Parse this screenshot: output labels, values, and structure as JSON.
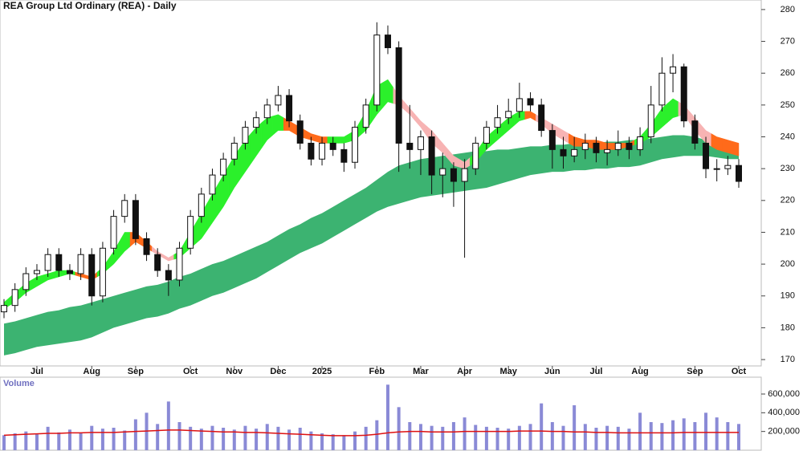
{
  "chart_data": {
    "type": "candlestick",
    "title": "REA Group Ltd Ordinary (REA) - Daily",
    "categories": [
      null,
      null,
      null,
      "Jul",
      null,
      null,
      null,
      null,
      "Aug",
      null,
      null,
      null,
      "Sep",
      null,
      null,
      null,
      null,
      "Oct",
      null,
      null,
      null,
      "Nov",
      null,
      null,
      null,
      "Dec",
      null,
      null,
      null,
      "2025",
      null,
      null,
      null,
      null,
      "Feb",
      null,
      null,
      null,
      "Mar",
      null,
      null,
      null,
      "Apr",
      null,
      null,
      null,
      "May",
      null,
      null,
      null,
      "Jun",
      null,
      null,
      null,
      "Jul",
      null,
      null,
      null,
      "Aug",
      null,
      null,
      null,
      null,
      "Sep",
      null,
      null,
      null,
      "Oct"
    ],
    "candles": [
      [
        185,
        189,
        183,
        187
      ],
      [
        187,
        194,
        185,
        192
      ],
      [
        192,
        199,
        190,
        197
      ],
      [
        197,
        200,
        195,
        198
      ],
      [
        198,
        205,
        196,
        203
      ],
      [
        203,
        205,
        196,
        198
      ],
      [
        198,
        200,
        195,
        197
      ],
      [
        197,
        205,
        195,
        203
      ],
      [
        203,
        205,
        187,
        190
      ],
      [
        190,
        207,
        188,
        205
      ],
      [
        205,
        217,
        203,
        215
      ],
      [
        215,
        222,
        213,
        220
      ],
      [
        220,
        222,
        206,
        208
      ],
      [
        208,
        210,
        201,
        203
      ],
      [
        203,
        205,
        196,
        198
      ],
      [
        198,
        200,
        190,
        195
      ],
      [
        195,
        207,
        193,
        205
      ],
      [
        205,
        217,
        203,
        215
      ],
      [
        215,
        224,
        213,
        222
      ],
      [
        222,
        230,
        220,
        228
      ],
      [
        228,
        235,
        226,
        233
      ],
      [
        233,
        240,
        231,
        238
      ],
      [
        238,
        245,
        236,
        243
      ],
      [
        243,
        248,
        241,
        246
      ],
      [
        246,
        252,
        244,
        250
      ],
      [
        250,
        256,
        248,
        253
      ],
      [
        253,
        255,
        243,
        245
      ],
      [
        245,
        247,
        236,
        238
      ],
      [
        238,
        240,
        231,
        233
      ],
      [
        233,
        240,
        231,
        238
      ],
      [
        238,
        240,
        234,
        236
      ],
      [
        236,
        238,
        229,
        232
      ],
      [
        232,
        245,
        230,
        243
      ],
      [
        243,
        252,
        241,
        250
      ],
      [
        250,
        276,
        248,
        272
      ],
      [
        272,
        275,
        266,
        268
      ],
      [
        268,
        270,
        229,
        238
      ],
      [
        238,
        250,
        230,
        236
      ],
      [
        236,
        242,
        228,
        240
      ],
      [
        240,
        242,
        222,
        228
      ],
      [
        228,
        235,
        221,
        230
      ],
      [
        230,
        232,
        218,
        226
      ],
      [
        226,
        233,
        202,
        230
      ],
      [
        230,
        240,
        228,
        238
      ],
      [
        238,
        245,
        236,
        243
      ],
      [
        243,
        250,
        241,
        246
      ],
      [
        246,
        252,
        244,
        248
      ],
      [
        248,
        257,
        246,
        252
      ],
      [
        252,
        254,
        248,
        250
      ],
      [
        250,
        252,
        240,
        242
      ],
      [
        242,
        244,
        230,
        236
      ],
      [
        236,
        240,
        230,
        234
      ],
      [
        234,
        240,
        232,
        236
      ],
      [
        236,
        241,
        233,
        238
      ],
      [
        238,
        240,
        232,
        235
      ],
      [
        235,
        239,
        231,
        236
      ],
      [
        236,
        242,
        234,
        238
      ],
      [
        238,
        240,
        233,
        236
      ],
      [
        236,
        243,
        234,
        240
      ],
      [
        240,
        256,
        238,
        250
      ],
      [
        250,
        265,
        248,
        260
      ],
      [
        260,
        266,
        254,
        262
      ],
      [
        262,
        263,
        243,
        245
      ],
      [
        245,
        247,
        236,
        238
      ],
      [
        238,
        240,
        227,
        230
      ],
      [
        230,
        233,
        226,
        230
      ],
      [
        230,
        234,
        228,
        231
      ],
      [
        231,
        233,
        224,
        226
      ]
    ],
    "up_color": "#ffffff",
    "down_color": "#111111",
    "long_ribbon": {
      "color": "#3cb371",
      "upper": [
        181.3,
        182,
        183,
        184,
        185,
        185.5,
        186.5,
        187,
        188,
        189,
        190,
        191,
        192,
        193,
        193.5,
        194.5,
        196,
        197,
        198.5,
        200,
        201,
        202.5,
        204,
        205.5,
        207,
        209,
        211,
        212.5,
        214.5,
        216,
        218,
        220,
        222,
        224,
        226.5,
        229,
        231,
        232,
        233,
        233.5,
        234,
        234.5,
        235,
        235.5,
        235.5,
        236,
        236,
        236.5,
        237,
        237,
        237.5,
        237.5,
        238,
        238,
        238,
        238.5,
        238.5,
        239,
        239,
        239.5,
        240,
        240.5,
        240.5,
        240,
        239,
        238.5,
        238,
        237
      ],
      "lower": [
        171.3,
        172,
        173,
        174,
        174.5,
        175,
        175.5,
        176,
        177,
        178.5,
        180,
        181,
        182,
        183,
        183.5,
        184.5,
        186,
        187,
        188.5,
        190,
        191,
        192.5,
        194,
        195.5,
        197.5,
        199.5,
        201.5,
        203.5,
        205,
        206.5,
        208.5,
        210.5,
        212.5,
        214.5,
        216.5,
        218,
        219,
        220,
        221,
        221.5,
        222,
        222.5,
        223,
        223.5,
        224,
        225,
        226,
        227,
        228,
        228.5,
        229,
        229,
        229.5,
        229.5,
        230,
        230,
        230.5,
        230.5,
        231,
        232,
        233,
        233.5,
        234,
        234,
        234,
        233.5,
        233,
        233
      ]
    },
    "short_ribbon": {
      "upper": [
        188,
        191,
        194,
        196,
        197,
        198,
        198,
        197,
        196,
        199,
        204,
        210,
        210,
        207,
        204,
        202,
        204,
        210,
        216,
        222,
        228,
        234,
        239,
        243,
        246,
        247,
        245,
        243,
        241,
        240,
        240,
        240,
        242,
        248,
        256,
        258,
        253,
        249,
        245,
        242,
        238,
        234,
        232,
        235,
        240,
        243,
        246,
        248,
        248,
        246,
        244,
        242,
        240,
        239,
        239,
        238,
        238,
        238,
        240,
        244,
        249,
        252,
        250,
        246,
        242,
        240,
        239,
        238
      ],
      "lower": [
        186,
        188,
        191,
        193,
        195,
        196,
        197,
        196,
        195,
        197,
        200,
        204,
        207,
        205,
        203,
        201,
        202,
        205,
        208,
        213,
        218,
        224,
        229,
        234,
        239,
        242,
        242,
        240,
        239,
        238,
        238,
        238,
        239,
        242,
        247,
        251,
        250,
        247,
        243,
        238,
        235,
        231,
        230,
        232,
        236,
        239,
        242,
        245,
        246,
        244,
        241,
        239,
        237,
        237,
        236,
        236,
        236,
        237,
        238,
        240,
        243,
        246,
        247,
        242,
        238,
        236,
        235,
        234
      ],
      "colors": [
        "#2bf02b",
        "#2bf02b",
        "#2bf02b",
        "#2bf02b",
        "#2bf02b",
        "#2bf02b",
        "#2bf02b",
        "#ff6a1a",
        "#ff6a1a",
        "#2bf02b",
        "#2bf02b",
        "#2bf02b",
        "#ff6a1a",
        "#ff6a1a",
        "#f7b3b3",
        "#f7b3b3",
        "#2bf02b",
        "#2bf02b",
        "#2bf02b",
        "#2bf02b",
        "#2bf02b",
        "#2bf02b",
        "#2bf02b",
        "#2bf02b",
        "#2bf02b",
        "#2bf02b",
        "#ff6a1a",
        "#ff6a1a",
        "#ff6a1a",
        "#ff6a1a",
        "#2bf02b",
        "#2bf02b",
        "#2bf02b",
        "#2bf02b",
        "#2bf02b",
        "#2bf02b",
        "#f7b3b3",
        "#f7b3b3",
        "#f7b3b3",
        "#f7b3b3",
        "#f7b3b3",
        "#f7b3b3",
        "#f7b3b3",
        "#2bf02b",
        "#2bf02b",
        "#2bf02b",
        "#2bf02b",
        "#2bf02b",
        "#ff6a1a",
        "#f7b3b3",
        "#f7b3b3",
        "#f7b3b3",
        "#ff6a1a",
        "#ff6a1a",
        "#ff6a1a",
        "#ff6a1a",
        "#ff6a1a",
        "#ff6a1a",
        "#2bf02b",
        "#2bf02b",
        "#2bf02b",
        "#2bf02b",
        "#f7b3b3",
        "#f7b3b3",
        "#f7b3b3",
        "#ff6a1a",
        "#ff6a1a",
        "#ff6a1a"
      ]
    },
    "ylim": [
      168,
      283
    ],
    "yticks": [
      170,
      180,
      190,
      200,
      210,
      220,
      230,
      240,
      250,
      260,
      270,
      280
    ],
    "volume": {
      "label": "Volume",
      "color": "#8a8ad6",
      "values": [
        160000,
        180000,
        200000,
        170000,
        250000,
        190000,
        220000,
        180000,
        260000,
        230000,
        240000,
        210000,
        330000,
        400000,
        280000,
        520000,
        300000,
        250000,
        230000,
        260000,
        240000,
        220000,
        260000,
        230000,
        280000,
        250000,
        220000,
        240000,
        200000,
        180000,
        170000,
        160000,
        200000,
        250000,
        320000,
        700000,
        460000,
        300000,
        280000,
        260000,
        250000,
        300000,
        350000,
        270000,
        250000,
        240000,
        230000,
        260000,
        280000,
        500000,
        300000,
        260000,
        480000,
        280000,
        240000,
        260000,
        250000,
        230000,
        400000,
        300000,
        290000,
        320000,
        340000,
        300000,
        400000,
        350000,
        300000,
        280000
      ],
      "average": {
        "color": "#dd1111",
        "values": [
          160000,
          165000,
          170000,
          175000,
          180000,
          180000,
          185000,
          185000,
          190000,
          190000,
          190000,
          195000,
          200000,
          205000,
          210000,
          215000,
          215000,
          210000,
          205000,
          200000,
          195000,
          195000,
          190000,
          190000,
          185000,
          180000,
          175000,
          170000,
          165000,
          160000,
          155000,
          155000,
          155000,
          160000,
          170000,
          185000,
          195000,
          200000,
          200000,
          195000,
          195000,
          195000,
          200000,
          200000,
          200000,
          200000,
          200000,
          205000,
          205000,
          205000,
          200000,
          200000,
          195000,
          195000,
          190000,
          190000,
          185000,
          185000,
          185000,
          185000,
          185000,
          185000,
          190000,
          190000,
          190000,
          190000,
          190000,
          190000
        ]
      },
      "ylim": [
        0,
        780000
      ],
      "yticks": [
        {
          "value": 200000,
          "label": "200,000"
        },
        {
          "value": 400000,
          "label": "400,000"
        },
        {
          "value": 600000,
          "label": "600,000"
        }
      ]
    }
  }
}
